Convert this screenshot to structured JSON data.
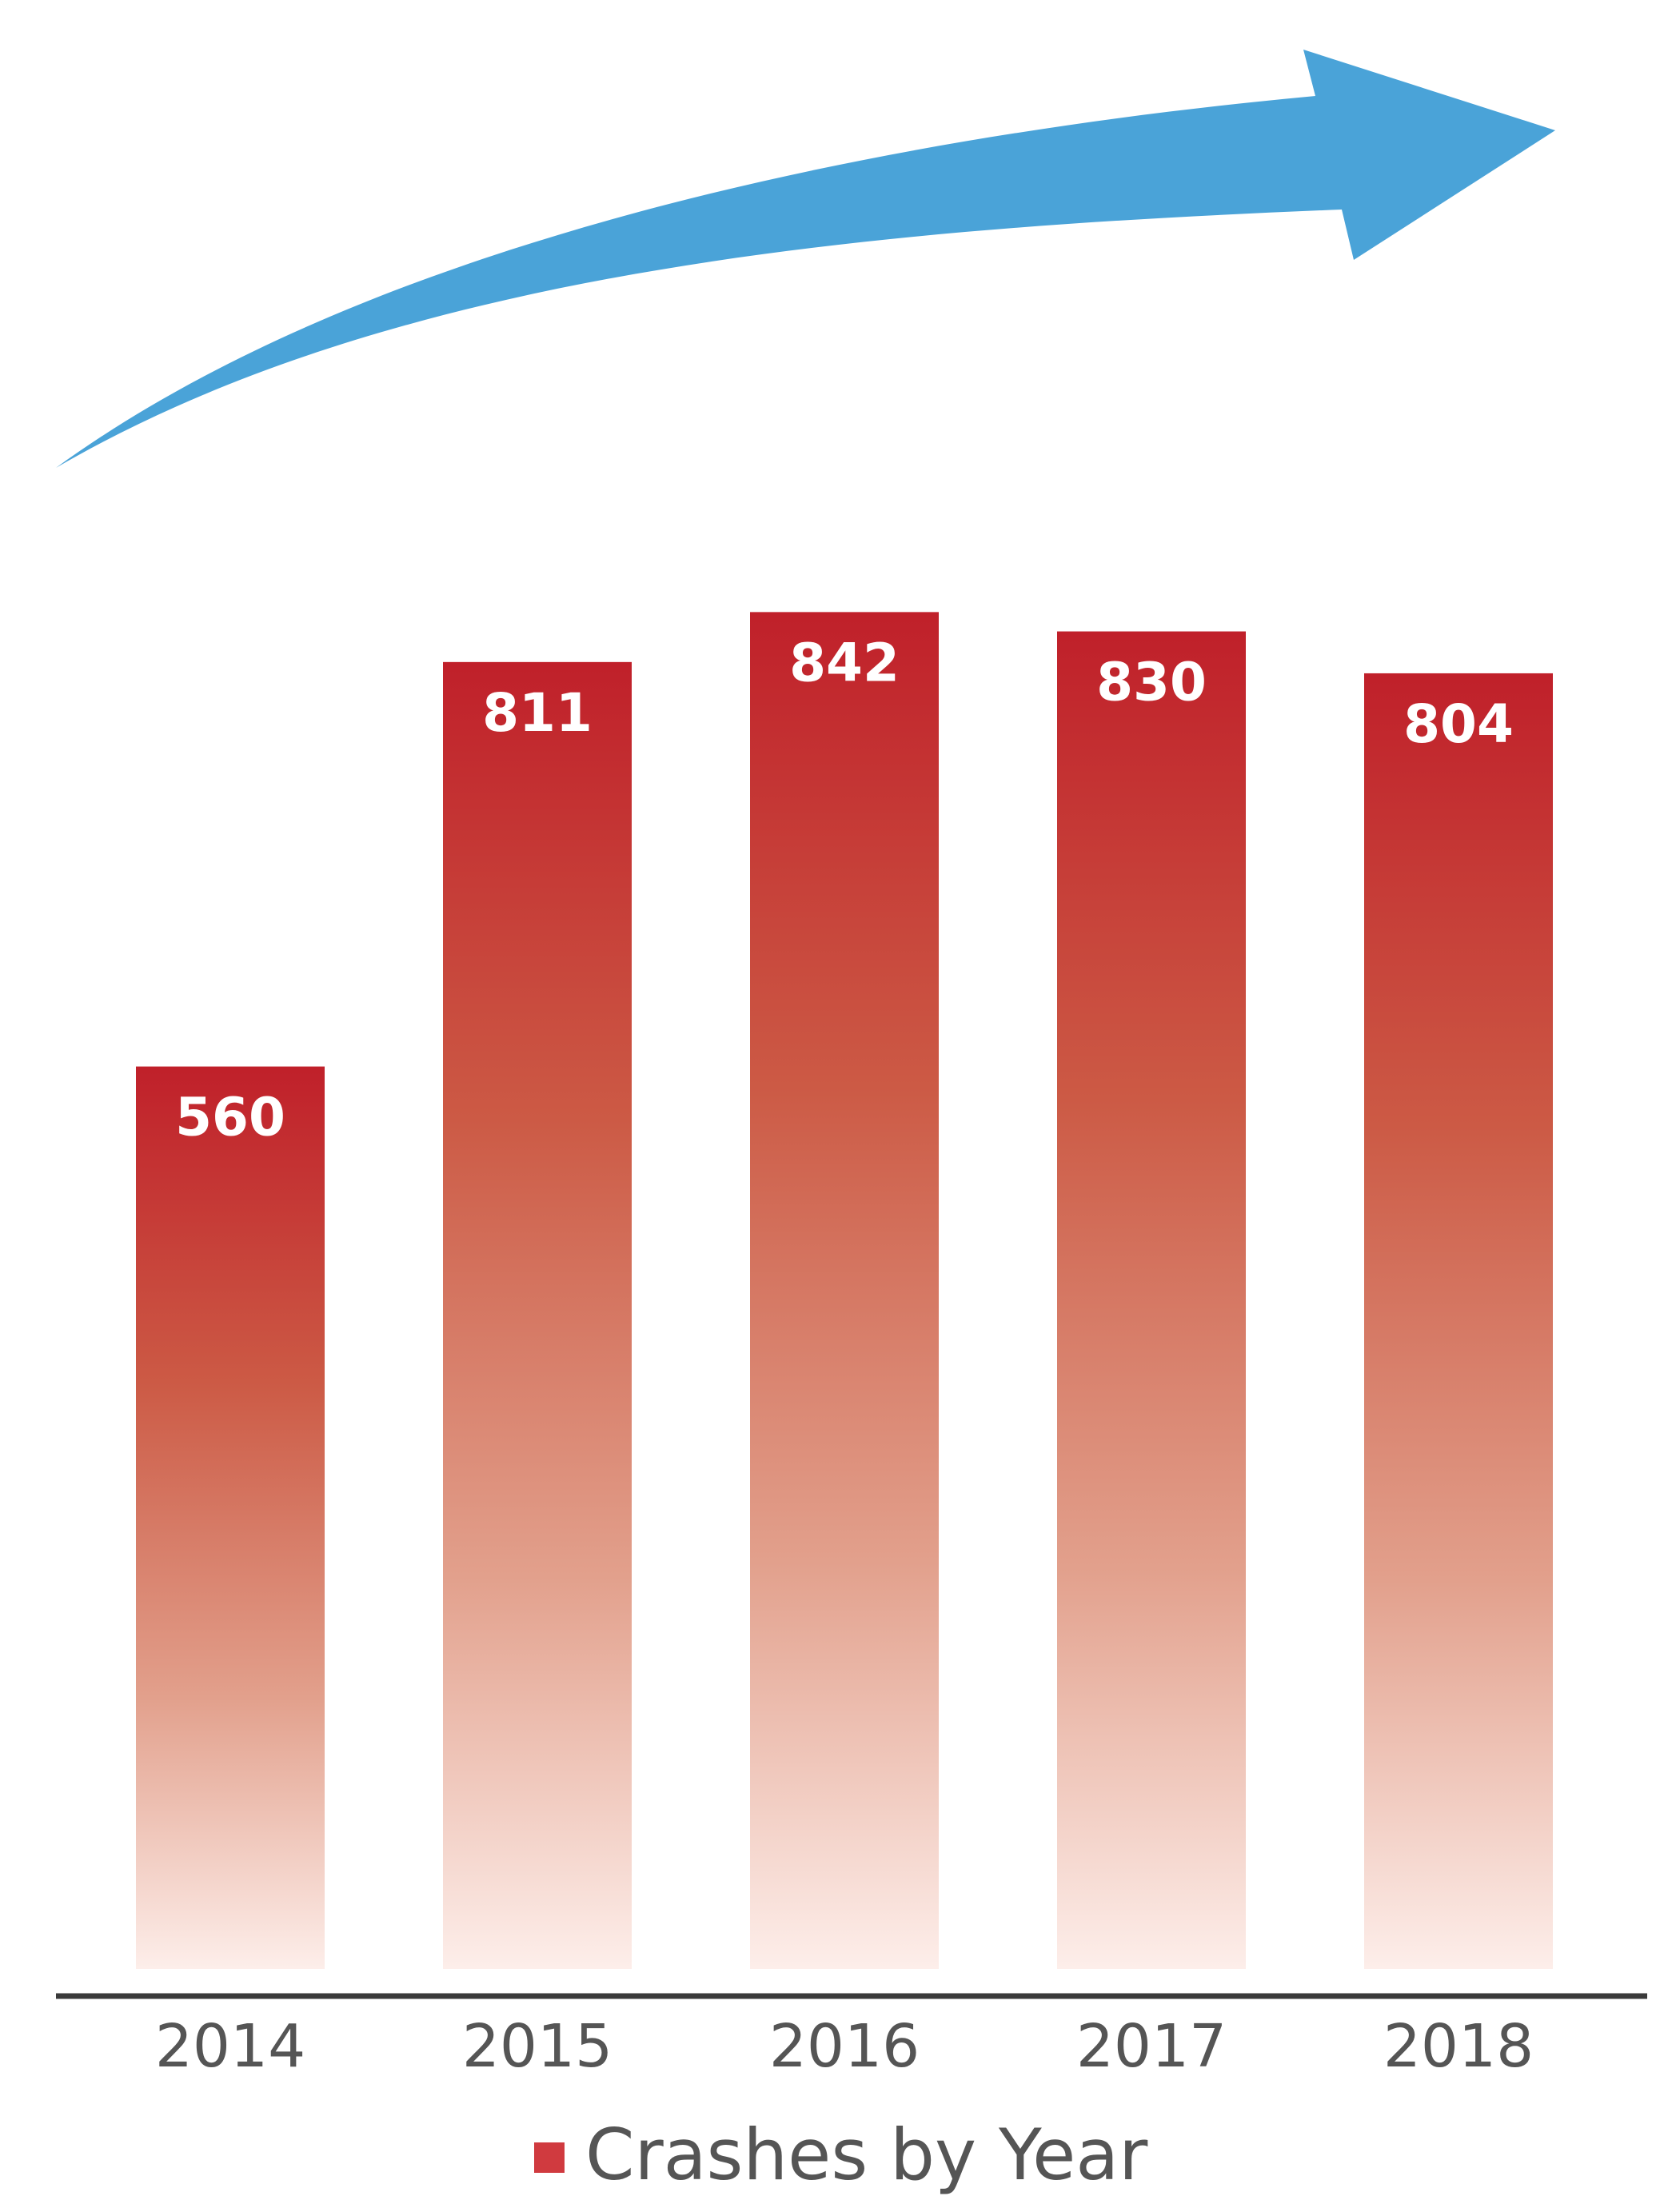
{
  "chart_data": {
    "type": "bar",
    "categories": [
      "2014",
      "2015",
      "2016",
      "2017",
      "2018"
    ],
    "series": [
      {
        "name": "Crashes by Year",
        "values": [
          560,
          811,
          842,
          830,
          804
        ]
      }
    ],
    "ylim": [
      0,
      1000
    ],
    "grid": false,
    "legend": "bottom-center",
    "annotations": [
      {
        "type": "trend-arrow",
        "direction": "up-right"
      }
    ],
    "colors": {
      "bar_top": "#c0202a",
      "bar_bottom": "#fdeeea",
      "arrow": "#4aa3d8",
      "axis": "#3a3a3a",
      "tick_text": "#555555",
      "legend_marker": "#d03a3f"
    }
  }
}
